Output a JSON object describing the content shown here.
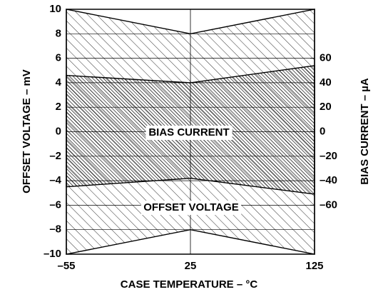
{
  "chart_data": {
    "type": "band",
    "categories": [
      "–55",
      "25",
      "125"
    ],
    "xlabel": "CASE TEMPERATURE – °C",
    "ylabel": "OFFSET VOLTAGE – mV",
    "y2label": "BIAS CURRENT – µA",
    "ylim": [
      -10,
      10
    ],
    "yticks": [
      {
        "value": -10,
        "label": "–10"
      },
      {
        "value": -8,
        "label": "–8"
      },
      {
        "value": -6,
        "label": "–6"
      },
      {
        "value": -4,
        "label": "–4"
      },
      {
        "value": -2,
        "label": "–2"
      },
      0,
      2,
      4,
      6,
      8,
      10
    ],
    "y2lim": [
      -100,
      100
    ],
    "y2ticks": [
      {
        "value": -60,
        "label": "–60"
      },
      {
        "value": -40,
        "label": "–40"
      },
      {
        "value": -20,
        "label": "–20"
      },
      0,
      20,
      40,
      60
    ],
    "grid": true,
    "series": [
      {
        "name": "OFFSET VOLTAGE",
        "color": "#000000",
        "values": [
          10,
          8,
          10
        ],
        "lower": [
          -10,
          -8,
          -10
        ]
      },
      {
        "name": "BIAS CURRENT",
        "color": "#000000",
        "axis": "y2",
        "values": [
          46,
          40,
          54
        ],
        "lower": [
          -45,
          -38,
          -51
        ]
      }
    ]
  }
}
